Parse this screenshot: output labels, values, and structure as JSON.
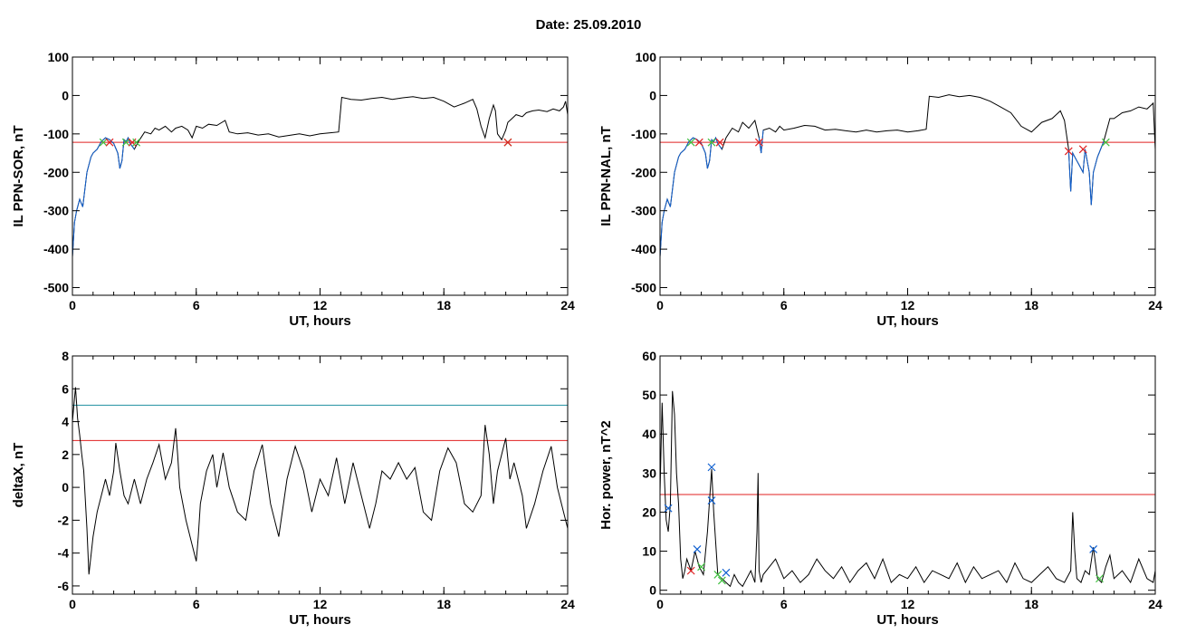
{
  "header": {
    "date_label": "Date:  25.09.2010"
  },
  "chart_data": [
    {
      "id": "p1",
      "type": "line",
      "title": "",
      "xlabel": "UT, hours",
      "ylabel": "IL PPN-SOR, nT",
      "xlim": [
        0,
        24
      ],
      "ylim": [
        -520,
        100
      ],
      "xticks": [
        0,
        6,
        12,
        18,
        24
      ],
      "yticks": [
        100,
        0,
        -100,
        -200,
        -300,
        -400,
        -500
      ],
      "grid": false,
      "threshold_lines": [
        {
          "y": -122,
          "color": "#e02020"
        }
      ],
      "series": [
        {
          "color": "#000000",
          "x": [
            0,
            0.1,
            0.2,
            0.35,
            0.5,
            0.7,
            0.9,
            1.0,
            1.2,
            1.4,
            1.6,
            1.8,
            2.0,
            2.2,
            2.3,
            2.4,
            2.5,
            2.6,
            2.7,
            2.8,
            3.0,
            3.2,
            3.5,
            3.8,
            4.0,
            4.2,
            4.5,
            4.8,
            5.0,
            5.3,
            5.6,
            5.8,
            6.0,
            6.3,
            6.6,
            7.0,
            7.4,
            7.6,
            8.0,
            8.5,
            9.0,
            9.5,
            10.0,
            10.5,
            11.0,
            11.5,
            12.0,
            12.5,
            12.9,
            13.0,
            13.05,
            13.5,
            14.0,
            14.5,
            15.0,
            15.5,
            16.0,
            16.5,
            17.0,
            17.5,
            18.0,
            18.5,
            19.0,
            19.4,
            19.6,
            19.8,
            20.0,
            20.2,
            20.4,
            20.5,
            20.6,
            20.8,
            21.0,
            21.1,
            21.3,
            21.5,
            21.8,
            22.0,
            22.3,
            22.6,
            23.0,
            23.3,
            23.6,
            23.8,
            23.9,
            24.0
          ],
          "y": [
            -420,
            -330,
            -300,
            -270,
            -290,
            -200,
            -160,
            -150,
            -140,
            -120,
            -110,
            -115,
            -125,
            -150,
            -190,
            -170,
            -115,
            -120,
            -110,
            -125,
            -140,
            -120,
            -95,
            -100,
            -85,
            -90,
            -80,
            -95,
            -85,
            -80,
            -90,
            -110,
            -80,
            -85,
            -75,
            -78,
            -65,
            -95,
            -100,
            -97,
            -103,
            -100,
            -108,
            -104,
            -100,
            -105,
            -100,
            -97,
            -95,
            -35,
            -5,
            -10,
            -12,
            -8,
            -5,
            -10,
            -6,
            -3,
            -8,
            -5,
            -15,
            -30,
            -20,
            -10,
            -35,
            -80,
            -110,
            -60,
            -25,
            -40,
            -100,
            -115,
            -90,
            -70,
            -60,
            -50,
            -55,
            -45,
            -40,
            -38,
            -42,
            -35,
            -40,
            -30,
            -15,
            -50
          ]
        },
        {
          "color": "#1060d0",
          "x": [
            0,
            0.1,
            0.2,
            0.35,
            0.5,
            0.7,
            0.9,
            1.0,
            1.2,
            1.4,
            1.6,
            1.8,
            2.0,
            2.2,
            2.3,
            2.4,
            2.5,
            2.6,
            2.7,
            2.8,
            3.0
          ],
          "y": [
            -420,
            -330,
            -300,
            -270,
            -290,
            -200,
            -160,
            -150,
            -140,
            -120,
            -110,
            -115,
            -125,
            -150,
            -190,
            -170,
            -115,
            -120,
            -110,
            -125,
            -140
          ]
        }
      ],
      "markers": [
        {
          "x": 1.5,
          "y": -122,
          "color": "#40c040"
        },
        {
          "x": 1.8,
          "y": -122,
          "color": "#e02020"
        },
        {
          "x": 2.6,
          "y": -122,
          "color": "#40c040"
        },
        {
          "x": 2.9,
          "y": -122,
          "color": "#e02020"
        },
        {
          "x": 3.1,
          "y": -122,
          "color": "#40c040"
        },
        {
          "x": 21.1,
          "y": -122,
          "color": "#40c040"
        },
        {
          "x": 21.1,
          "y": -122,
          "color": "#e02020"
        }
      ]
    },
    {
      "id": "p2",
      "type": "line",
      "title": "",
      "xlabel": "UT, hours",
      "ylabel": "IL PPN-NAL, nT",
      "xlim": [
        0,
        24
      ],
      "ylim": [
        -520,
        100
      ],
      "xticks": [
        0,
        6,
        12,
        18,
        24
      ],
      "yticks": [
        100,
        0,
        -100,
        -200,
        -300,
        -400,
        -500
      ],
      "grid": false,
      "threshold_lines": [
        {
          "y": -122,
          "color": "#e02020"
        }
      ],
      "series": [
        {
          "color": "#000000",
          "x": [
            0,
            0.1,
            0.2,
            0.35,
            0.5,
            0.7,
            0.9,
            1.0,
            1.2,
            1.4,
            1.6,
            1.8,
            2.0,
            2.2,
            2.3,
            2.4,
            2.5,
            2.6,
            2.7,
            2.8,
            3.0,
            3.2,
            3.5,
            3.8,
            4.0,
            4.3,
            4.6,
            4.8,
            4.9,
            5.0,
            5.3,
            5.6,
            5.8,
            6.0,
            6.5,
            7.0,
            7.5,
            8.0,
            8.5,
            9.0,
            9.5,
            10.0,
            10.5,
            11.0,
            11.5,
            12.0,
            12.5,
            12.9,
            13.0,
            13.05,
            13.5,
            14.0,
            14.5,
            15.0,
            15.5,
            16.0,
            16.5,
            17.0,
            17.5,
            18.0,
            18.5,
            19.0,
            19.4,
            19.6,
            19.8,
            19.9,
            20.0,
            20.1,
            20.3,
            20.5,
            20.6,
            20.8,
            20.9,
            21.0,
            21.2,
            21.5,
            21.8,
            22.0,
            22.4,
            22.8,
            23.2,
            23.6,
            23.9,
            24.0
          ],
          "y": [
            -420,
            -330,
            -300,
            -270,
            -290,
            -200,
            -160,
            -150,
            -140,
            -120,
            -110,
            -115,
            -125,
            -150,
            -190,
            -170,
            -115,
            -120,
            -110,
            -125,
            -140,
            -110,
            -85,
            -95,
            -70,
            -85,
            -65,
            -110,
            -150,
            -90,
            -85,
            -95,
            -80,
            -90,
            -85,
            -78,
            -80,
            -90,
            -88,
            -92,
            -95,
            -90,
            -95,
            -92,
            -90,
            -95,
            -92,
            -88,
            -30,
            -2,
            -5,
            2,
            -3,
            0,
            -5,
            -15,
            -30,
            -45,
            -80,
            -95,
            -70,
            -60,
            -40,
            -65,
            -140,
            -250,
            -150,
            -160,
            -180,
            -200,
            -140,
            -200,
            -285,
            -200,
            -160,
            -120,
            -60,
            -60,
            -45,
            -40,
            -30,
            -35,
            -20,
            -140
          ]
        },
        {
          "color": "#1060d0",
          "x": [
            0,
            0.1,
            0.2,
            0.35,
            0.5,
            0.7,
            0.9,
            1.0,
            1.2,
            1.4,
            1.6,
            1.8,
            2.0,
            2.2,
            2.3,
            2.4,
            2.5,
            2.6,
            2.7,
            2.8,
            3.0
          ],
          "y": [
            -420,
            -330,
            -300,
            -270,
            -290,
            -200,
            -160,
            -150,
            -140,
            -120,
            -110,
            -115,
            -125,
            -150,
            -190,
            -170,
            -115,
            -120,
            -110,
            -125,
            -140
          ]
        },
        {
          "color": "#1060d0",
          "x": [
            4.8,
            4.9,
            5.0
          ],
          "y": [
            -110,
            -150,
            -90
          ]
        },
        {
          "color": "#1060d0",
          "x": [
            19.8,
            19.9,
            20.0,
            20.1,
            20.3,
            20.5,
            20.6,
            20.8,
            20.9,
            21.0,
            21.2,
            21.5
          ],
          "y": [
            -140,
            -250,
            -150,
            -160,
            -180,
            -200,
            -140,
            -200,
            -285,
            -200,
            -160,
            -120
          ]
        }
      ],
      "markers": [
        {
          "x": 1.5,
          "y": -122,
          "color": "#40c040"
        },
        {
          "x": 1.9,
          "y": -122,
          "color": "#e02020"
        },
        {
          "x": 2.5,
          "y": -122,
          "color": "#40c040"
        },
        {
          "x": 2.9,
          "y": -122,
          "color": "#e02020"
        },
        {
          "x": 4.8,
          "y": -122,
          "color": "#e02020"
        },
        {
          "x": 19.8,
          "y": -145,
          "color": "#e02020"
        },
        {
          "x": 20.5,
          "y": -140,
          "color": "#e02020"
        },
        {
          "x": 21.6,
          "y": -122,
          "color": "#40c040"
        }
      ]
    },
    {
      "id": "p3",
      "type": "line",
      "title": "",
      "xlabel": "UT, hours",
      "ylabel": "deltaX, nT",
      "xlim": [
        0,
        24
      ],
      "ylim": [
        -6.5,
        8
      ],
      "xticks": [
        0,
        6,
        12,
        18,
        24
      ],
      "yticks": [
        8,
        6,
        4,
        2,
        0,
        -2,
        -4,
        -6
      ],
      "grid": false,
      "threshold_lines": [
        {
          "y": 5,
          "color": "#2090a0"
        },
        {
          "y": 2.85,
          "color": "#e02020"
        }
      ],
      "series": [
        {
          "color": "#000000",
          "x": [
            0,
            0.15,
            0.25,
            0.35,
            0.45,
            0.55,
            0.7,
            0.8,
            1.0,
            1.2,
            1.4,
            1.6,
            1.8,
            2.0,
            2.1,
            2.3,
            2.5,
            2.7,
            3.0,
            3.3,
            3.6,
            3.9,
            4.2,
            4.5,
            4.8,
            5.0,
            5.1,
            5.2,
            5.5,
            5.8,
            6.0,
            6.1,
            6.2,
            6.5,
            6.8,
            7.0,
            7.3,
            7.6,
            8.0,
            8.4,
            8.8,
            9.2,
            9.6,
            10.0,
            10.4,
            10.8,
            11.2,
            11.6,
            12.0,
            12.4,
            12.8,
            13.2,
            13.6,
            14.0,
            14.4,
            14.7,
            15.0,
            15.4,
            15.8,
            16.2,
            16.6,
            17.0,
            17.4,
            17.8,
            18.2,
            18.6,
            19.0,
            19.4,
            19.8,
            20.0,
            20.2,
            20.4,
            20.6,
            20.8,
            21.0,
            21.2,
            21.4,
            21.8,
            22.0,
            22.4,
            22.8,
            23.2,
            23.5,
            23.8,
            24.0
          ],
          "y": [
            4,
            6.1,
            4.2,
            3.2,
            2.0,
            1.0,
            -2.5,
            -5.3,
            -3.0,
            -1.5,
            -0.5,
            0.5,
            -0.5,
            1.0,
            2.7,
            1.0,
            -0.5,
            -1.0,
            0.5,
            -1.0,
            0.5,
            1.5,
            2.6,
            0.5,
            1.5,
            3.6,
            2.0,
            0.0,
            -2.0,
            -3.5,
            -4.5,
            -3.0,
            -1.0,
            1.0,
            2.0,
            0.0,
            2.1,
            0.0,
            -1.5,
            -2.0,
            1.0,
            2.6,
            -1.0,
            -3.0,
            0.5,
            2.5,
            1.0,
            -1.5,
            0.5,
            -0.5,
            1.8,
            -1.0,
            1.5,
            -0.5,
            -2.5,
            -1.0,
            1.0,
            0.5,
            1.5,
            0.5,
            1.2,
            -1.5,
            -2.0,
            1.0,
            2.4,
            1.5,
            -1.0,
            -1.5,
            -0.5,
            3.8,
            2.0,
            -1.0,
            1.0,
            2.0,
            3.0,
            0.5,
            1.5,
            -0.5,
            -2.5,
            -1.0,
            1.0,
            2.5,
            0.0,
            -1.5,
            -2.5
          ]
        }
      ],
      "markers": []
    },
    {
      "id": "p4",
      "type": "line",
      "title": "",
      "xlabel": "UT, hours",
      "ylabel": "Hor. power, nT^2",
      "xlim": [
        0,
        24
      ],
      "ylim": [
        -1,
        60
      ],
      "xticks": [
        0,
        6,
        12,
        18,
        24
      ],
      "yticks": [
        60,
        50,
        40,
        30,
        20,
        10,
        0
      ],
      "grid": false,
      "threshold_lines": [
        {
          "y": 24.5,
          "color": "#e02020"
        }
      ],
      "series": [
        {
          "color": "#000000",
          "x": [
            0,
            0.1,
            0.2,
            0.3,
            0.4,
            0.5,
            0.6,
            0.7,
            0.8,
            0.9,
            1.0,
            1.1,
            1.2,
            1.3,
            1.5,
            1.7,
            1.9,
            2.1,
            2.3,
            2.5,
            2.6,
            2.8,
            3.0,
            3.2,
            3.4,
            3.6,
            3.8,
            4.0,
            4.2,
            4.4,
            4.6,
            4.7,
            4.75,
            4.8,
            4.9,
            5.0,
            5.3,
            5.6,
            6.0,
            6.4,
            6.8,
            7.2,
            7.6,
            8.0,
            8.4,
            8.8,
            9.2,
            9.6,
            10.0,
            10.4,
            10.8,
            11.2,
            11.6,
            12.0,
            12.4,
            12.8,
            13.2,
            13.6,
            14.0,
            14.4,
            14.8,
            15.2,
            15.6,
            16.0,
            16.4,
            16.8,
            17.2,
            17.6,
            18.0,
            18.4,
            18.8,
            19.2,
            19.6,
            19.9,
            20.0,
            20.1,
            20.2,
            20.4,
            20.6,
            20.8,
            21.0,
            21.2,
            21.4,
            21.6,
            21.8,
            22.0,
            22.4,
            22.8,
            23.2,
            23.6,
            23.9,
            24.0
          ],
          "y": [
            25,
            48,
            30,
            18,
            15,
            22,
            51,
            45,
            30,
            22,
            8,
            3,
            5,
            8,
            5,
            10,
            6,
            4,
            15,
            31,
            20,
            4,
            3,
            2,
            1,
            4,
            2,
            1,
            3,
            5,
            2,
            15,
            30,
            5,
            2,
            4,
            6,
            8,
            3,
            5,
            2,
            4,
            8,
            5,
            3,
            6,
            2,
            5,
            7,
            3,
            8,
            2,
            4,
            3,
            6,
            2,
            5,
            4,
            3,
            7,
            2,
            6,
            3,
            4,
            5,
            2,
            7,
            3,
            2,
            4,
            6,
            3,
            2,
            5,
            20,
            10,
            3,
            2,
            5,
            4,
            11,
            3,
            2,
            6,
            9,
            3,
            5,
            2,
            8,
            3,
            2,
            5
          ]
        }
      ],
      "markers": [
        {
          "x": 0.4,
          "y": 21,
          "color": "#1060d0"
        },
        {
          "x": 1.5,
          "y": 5,
          "color": "#e02020"
        },
        {
          "x": 1.8,
          "y": 10.5,
          "color": "#1060d0"
        },
        {
          "x": 2.0,
          "y": 6,
          "color": "#40c040"
        },
        {
          "x": 2.5,
          "y": 31.5,
          "color": "#1060d0"
        },
        {
          "x": 2.5,
          "y": 23,
          "color": "#1060d0"
        },
        {
          "x": 2.8,
          "y": 4,
          "color": "#40c040"
        },
        {
          "x": 3.0,
          "y": 2.5,
          "color": "#40c040"
        },
        {
          "x": 3.2,
          "y": 4.5,
          "color": "#1060d0"
        },
        {
          "x": 21.0,
          "y": 10.5,
          "color": "#1060d0"
        },
        {
          "x": 21.3,
          "y": 3,
          "color": "#40c040"
        }
      ]
    }
  ]
}
